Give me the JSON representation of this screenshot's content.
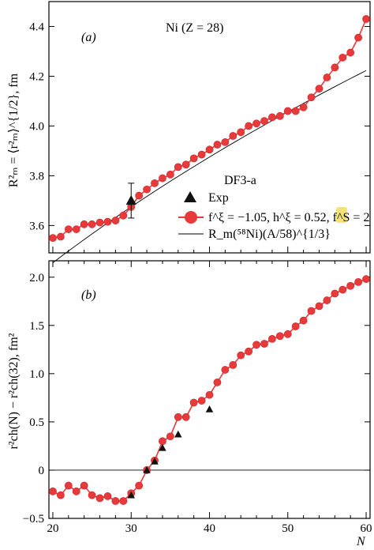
{
  "colors": {
    "series": "#e8393b",
    "series_edge": "#c62828",
    "exp": "#111111",
    "highlight": "#f6e27a"
  },
  "chart_data": [
    {
      "type": "line",
      "panel": "(a)",
      "annotation": "Ni (Z = 28)",
      "legend_title": "DF3-a",
      "ylabel": "R²ₘ = ⟨r²ₘ⟩^{1/2}, fm",
      "xlabel": "",
      "xlim": [
        19.5,
        60.5
      ],
      "ylim": [
        3.49,
        4.5
      ],
      "yticks": [
        3.6,
        3.8,
        4.0,
        4.2,
        4.4
      ],
      "ytick_labels": [
        "3.6",
        "3.8",
        "4.0",
        "4.2",
        "4.4"
      ],
      "legend_placement": "center-right",
      "legend": [
        {
          "marker": "triangle",
          "label": "Exp"
        },
        {
          "marker": "circle-line",
          "label": "f^ξ = −1.05, h^ξ = 0.52, f^S = 2"
        },
        {
          "marker": "line",
          "label": "R_m(⁵⁸Ni)(A/58)^{1/3}"
        }
      ],
      "series": [
        {
          "name": "f^ξ = −1.05, h^ξ = 0.52, f^S = 2",
          "x": [
            20,
            21,
            22,
            23,
            24,
            25,
            26,
            27,
            28,
            29,
            30,
            31,
            32,
            33,
            34,
            35,
            36,
            37,
            38,
            39,
            40,
            41,
            42,
            43,
            44,
            45,
            46,
            47,
            48,
            49,
            50,
            51,
            52,
            53,
            54,
            55,
            56,
            57,
            58,
            59,
            60
          ],
          "y": [
            3.55,
            3.555,
            3.585,
            3.585,
            3.605,
            3.605,
            3.612,
            3.615,
            3.62,
            3.64,
            3.675,
            3.72,
            3.745,
            3.77,
            3.79,
            3.805,
            3.835,
            3.845,
            3.87,
            3.885,
            3.905,
            3.925,
            3.935,
            3.96,
            3.975,
            4.0,
            4.01,
            4.02,
            4.035,
            4.04,
            4.06,
            4.06,
            4.075,
            4.115,
            4.15,
            4.195,
            4.235,
            4.275,
            4.295,
            4.355,
            4.43
          ]
        },
        {
          "name": "Exp",
          "x": [
            30
          ],
          "y": [
            3.7
          ],
          "error": [
            0.07
          ]
        }
      ]
    },
    {
      "type": "line",
      "panel": "(b)",
      "ylabel": "r²ch(N) − r²ch(32), fm²",
      "xlabel": "N",
      "xlim": [
        19.5,
        60.5
      ],
      "ylim": [
        -0.5,
        2.17
      ],
      "xticks": [
        20,
        30,
        40,
        50,
        60
      ],
      "xtick_labels": [
        "20",
        "30",
        "40",
        "50",
        "60"
      ],
      "yticks": [
        -0.5,
        0.0,
        0.5,
        1.0,
        1.5,
        2.0
      ],
      "ytick_labels": [
        "−0.5",
        "0",
        "0.5",
        "1.0",
        "1.5",
        "2.0"
      ],
      "series": [
        {
          "name": "f^ξ = −1.05, h^ξ = 0.52, f^S = 2",
          "x": [
            20,
            21,
            22,
            23,
            24,
            25,
            26,
            27,
            28,
            29,
            30,
            31,
            32,
            33,
            34,
            35,
            36,
            37,
            38,
            39,
            40,
            41,
            42,
            43,
            44,
            45,
            46,
            47,
            48,
            49,
            50,
            51,
            52,
            53,
            54,
            55,
            56,
            57,
            58,
            59,
            60
          ],
          "y": [
            -0.22,
            -0.26,
            -0.16,
            -0.22,
            -0.16,
            -0.26,
            -0.29,
            -0.27,
            -0.32,
            -0.32,
            -0.24,
            -0.16,
            0.0,
            0.1,
            0.3,
            0.35,
            0.55,
            0.55,
            0.7,
            0.72,
            0.78,
            0.91,
            1.04,
            1.09,
            1.19,
            1.23,
            1.3,
            1.31,
            1.36,
            1.39,
            1.41,
            1.49,
            1.55,
            1.65,
            1.7,
            1.76,
            1.83,
            1.87,
            1.91,
            1.95,
            1.98
          ]
        },
        {
          "name": "Exp",
          "x": [
            30,
            32,
            33,
            34,
            36,
            40
          ],
          "y": [
            -0.26,
            0.0,
            0.09,
            0.23,
            0.37,
            0.63
          ]
        }
      ]
    }
  ]
}
